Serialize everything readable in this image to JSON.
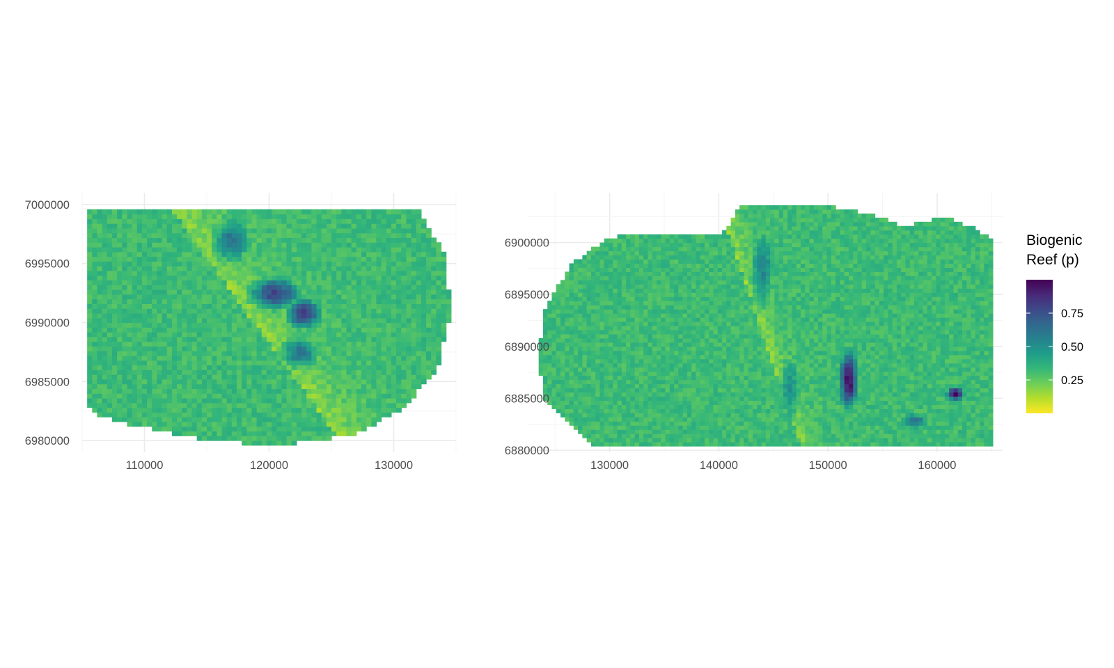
{
  "chart_data": [
    {
      "type": "heatmap",
      "panel": "left",
      "title": "",
      "xlabel": "",
      "ylabel": "",
      "xlim": [
        105000,
        135000
      ],
      "ylim": [
        6979000,
        7001000
      ],
      "x_ticks": [
        110000,
        120000,
        130000
      ],
      "x_tick_labels": [
        "110000",
        "120000",
        "130000"
      ],
      "y_ticks": [
        6980000,
        6985000,
        6990000,
        6995000,
        7000000
      ],
      "y_tick_labels": [
        "6980000",
        "6985000",
        "6990000",
        "6995000",
        "7000000"
      ],
      "grid": true,
      "field": {
        "x_range": [
          105400,
          134600
        ],
        "y_range": [
          6979600,
          6999800
        ],
        "cell_size": 400,
        "background": 0.02,
        "gradient": {
          "x0": 112000,
          "y0": 6999800,
          "x1": 126000,
          "y1": 6979600,
          "width": 5000,
          "high": 0.3
        },
        "blobs": [
          {
            "x": 117000,
            "y": 6997000,
            "sx": 1800,
            "sy": 2200,
            "v": 0.6
          },
          {
            "x": 120500,
            "y": 6992500,
            "sx": 2200,
            "sy": 1500,
            "v": 0.8
          },
          {
            "x": 122800,
            "y": 6990800,
            "sx": 1500,
            "sy": 1400,
            "v": 0.85
          },
          {
            "x": 122500,
            "y": 6987500,
            "sx": 1800,
            "sy": 1600,
            "v": 0.6
          },
          {
            "x": 131000,
            "y": 6992000,
            "sx": 6000,
            "sy": 6000,
            "v": 0.18
          }
        ],
        "outline": [
          [
            105400,
            6999800
          ],
          [
            131800,
            6999800
          ],
          [
            134000,
            6996000
          ],
          [
            134600,
            6991000
          ],
          [
            133500,
            6986000
          ],
          [
            130500,
            6982500
          ],
          [
            126500,
            6980400
          ],
          [
            121000,
            6979600
          ],
          [
            115000,
            6980000
          ],
          [
            109500,
            6981200
          ],
          [
            106500,
            6982000
          ],
          [
            105400,
            6983000
          ]
        ]
      }
    },
    {
      "type": "heatmap",
      "panel": "right",
      "title": "",
      "xlabel": "",
      "ylabel": "",
      "xlim": [
        122500,
        166000
      ],
      "ylim": [
        6879800,
        6904800
      ],
      "x_ticks": [
        130000,
        140000,
        150000,
        160000
      ],
      "x_tick_labels": [
        "130000",
        "140000",
        "150000",
        "160000"
      ],
      "y_ticks": [
        6880000,
        6885000,
        6890000,
        6895000,
        6900000
      ],
      "y_tick_labels": [
        "6880000",
        "6885000",
        "6890000",
        "6895000",
        "6900000"
      ],
      "grid": true,
      "field": {
        "x_range": [
          123500,
          165000
        ],
        "y_range": [
          6880400,
          6903600
        ],
        "cell_size": 400,
        "background": 0.02,
        "gradient": {
          "x0": 140000,
          "y0": 6903600,
          "x1": 147500,
          "y1": 6880400,
          "width": 2500,
          "high": 0.3
        },
        "blobs": [
          {
            "x": 151900,
            "y": 6886800,
            "sx": 900,
            "sy": 3000,
            "v": 1.0
          },
          {
            "x": 161700,
            "y": 6885500,
            "sx": 900,
            "sy": 700,
            "v": 1.0
          },
          {
            "x": 158000,
            "y": 6882800,
            "sx": 1600,
            "sy": 1000,
            "v": 0.6
          },
          {
            "x": 144000,
            "y": 6897500,
            "sx": 1300,
            "sy": 4500,
            "v": 0.55
          },
          {
            "x": 146500,
            "y": 6886000,
            "sx": 1200,
            "sy": 4000,
            "v": 0.5
          },
          {
            "x": 156000,
            "y": 6897000,
            "sx": 8000,
            "sy": 6000,
            "v": 0.2
          }
        ],
        "outline": [
          [
            142000,
            6903600
          ],
          [
            150000,
            6903600
          ],
          [
            154500,
            6902600
          ],
          [
            157000,
            6901600
          ],
          [
            160500,
            6902500
          ],
          [
            163000,
            6901600
          ],
          [
            165000,
            6900400
          ],
          [
            165000,
            6880400
          ],
          [
            128500,
            6880400
          ],
          [
            126500,
            6882500
          ],
          [
            124000,
            6885000
          ],
          [
            123500,
            6889000
          ],
          [
            124000,
            6893500
          ],
          [
            126500,
            6898000
          ],
          [
            130000,
            6900500
          ],
          [
            133500,
            6901000
          ],
          [
            137500,
            6900600
          ],
          [
            140500,
            6901000
          ]
        ]
      }
    }
  ],
  "legend": {
    "title_line1": "Biogenic",
    "title_line2": "Reef (p)",
    "placement": "right",
    "ticks": [
      0.25,
      0.5,
      0.75
    ],
    "tick_labels": [
      "0.25",
      "0.50",
      "0.75"
    ],
    "limits": [
      0,
      1
    ],
    "palette": [
      "#fde725",
      "#b5de2b",
      "#6ece58",
      "#35b779",
      "#1f9e89",
      "#26828e",
      "#31688e",
      "#3e4989",
      "#482878",
      "#440154"
    ]
  },
  "colors": {
    "grid_major": "#ebebeb",
    "grid_minor": "#f5f5f5",
    "tick_text": "#4d4d4d"
  }
}
